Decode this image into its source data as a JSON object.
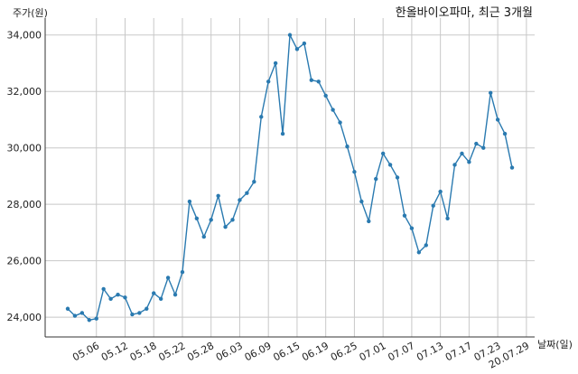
{
  "chart_data": {
    "type": "line",
    "title": "한올바이오파마, 최근 3개월",
    "xlabel": "날짜(일)",
    "ylabel": "주가(원)",
    "ylim": [
      23300,
      34600
    ],
    "y_ticks": [
      "24,000",
      "26,000",
      "28,000",
      "30,000",
      "32,000",
      "34,000"
    ],
    "y_tick_values": [
      24000,
      26000,
      28000,
      30000,
      32000,
      34000
    ],
    "x_tick_labels": [
      "05.06",
      "05.12",
      "05.18",
      "05.22",
      "05.28",
      "06.03",
      "06.09",
      "06.15",
      "06.19",
      "06.25",
      "07.01",
      "07.07",
      "07.13",
      "07.17",
      "07.23",
      "20.07.29"
    ],
    "x_tick_indices": [
      4,
      8,
      12,
      16,
      20,
      24,
      28,
      32,
      36,
      40,
      44,
      48,
      52,
      56,
      60,
      64
    ],
    "grid": true,
    "series": [
      {
        "color": "#2a7ab0",
        "values": [
          24300,
          24050,
          24150,
          23900,
          23950,
          25000,
          24650,
          24800,
          24700,
          24100,
          24150,
          24300,
          24850,
          24650,
          25400,
          24800,
          25600,
          28100,
          27500,
          26850,
          27450,
          28300,
          27200,
          27450,
          28150,
          28400,
          28800,
          31100,
          32350,
          33000,
          30500,
          34000,
          33500,
          33700,
          32400,
          32350,
          31850,
          31350,
          30900,
          30050,
          29150,
          28100,
          27400,
          28900,
          29800,
          29400,
          28950,
          27600,
          27150,
          26300,
          26550,
          27950,
          28450,
          27500,
          29400,
          29800,
          29500,
          30150,
          30000,
          31950,
          31000,
          30500,
          29300
        ]
      }
    ]
  }
}
